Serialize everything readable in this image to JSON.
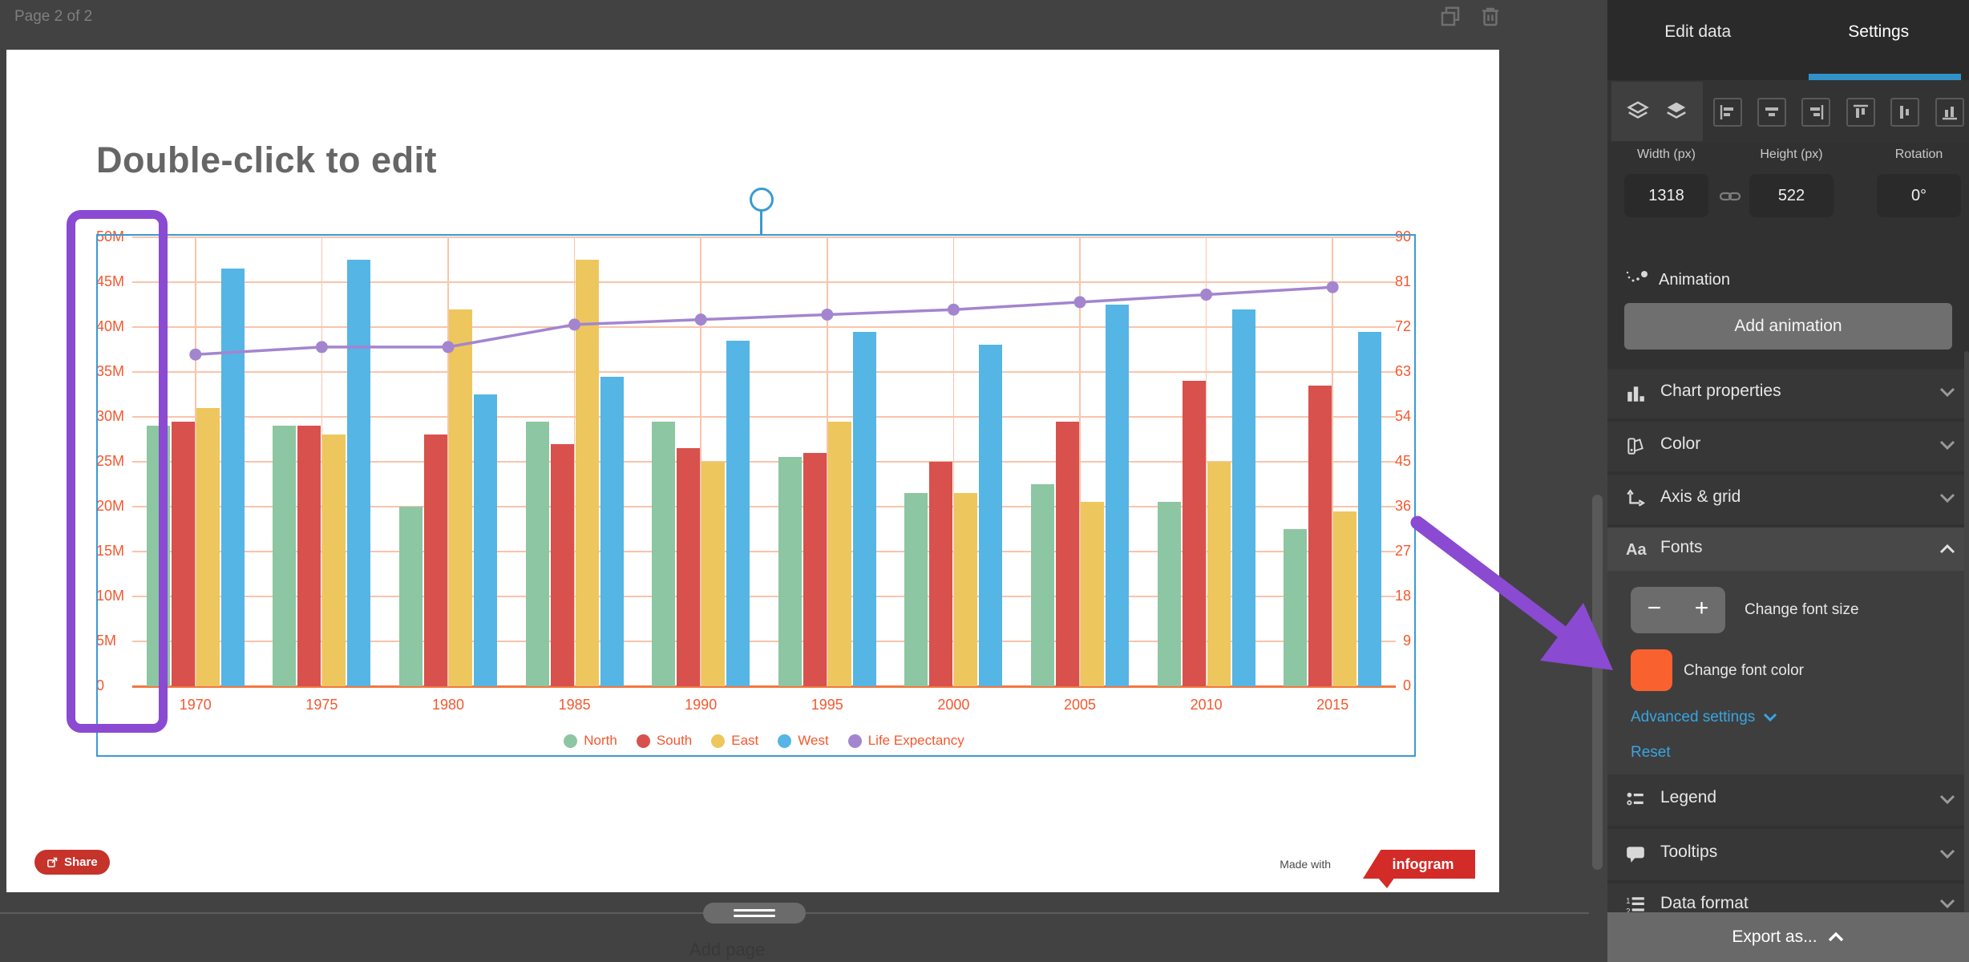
{
  "page": {
    "label": "Page 2 of 2",
    "add_page": "Add page"
  },
  "canvas": {
    "title": "Double-click to edit",
    "share_label": "Share",
    "made_with": "Made with",
    "brand": "infogram"
  },
  "chart_data": {
    "type": "bar",
    "title": "Double-click to edit",
    "categories": [
      "1970",
      "1975",
      "1980",
      "1985",
      "1990",
      "1995",
      "2000",
      "2005",
      "2010",
      "2015"
    ],
    "series": [
      {
        "name": "North",
        "color": "#8cc6a2",
        "values": [
          29,
          29,
          20,
          29.5,
          29.5,
          25.5,
          21.5,
          22.5,
          20.5,
          17.5
        ]
      },
      {
        "name": "South",
        "color": "#d8514d",
        "values": [
          29.5,
          29,
          28,
          27,
          26.5,
          26,
          25,
          29.5,
          34,
          33.5
        ]
      },
      {
        "name": "East",
        "color": "#edc75d",
        "values": [
          31,
          28,
          42,
          47.5,
          25,
          29.5,
          21.5,
          20.5,
          25,
          19.5
        ]
      },
      {
        "name": "West",
        "color": "#55b5e5",
        "values": [
          46.5,
          47.5,
          32.5,
          34.5,
          38.5,
          39.5,
          38,
          42.5,
          42,
          39.5
        ]
      }
    ],
    "line_series": {
      "name": "Life Expectancy",
      "color": "#a385cf",
      "values": [
        66.5,
        68,
        68,
        72.5,
        73.5,
        74.5,
        75.5,
        77,
        78.5,
        80
      ]
    },
    "left_axis": {
      "min": 0,
      "max": 50,
      "step": 5,
      "suffix": "M"
    },
    "right_axis": {
      "min": 0,
      "max": 90,
      "step": 9
    },
    "grid": true,
    "legend_position": "bottom",
    "axis_label_color": "#f4582e"
  },
  "panel": {
    "tabs": [
      {
        "label": "Edit data",
        "active": false
      },
      {
        "label": "Settings",
        "active": true
      }
    ],
    "dimensions": {
      "width_label": "Width (px)",
      "width_value": "1318",
      "height_label": "Height (px)",
      "height_value": "522",
      "rotation_label": "Rotation",
      "rotation_value": "0°"
    },
    "animation": {
      "label": "Animation",
      "button": "Add animation"
    },
    "sections": [
      {
        "label": "Chart properties"
      },
      {
        "label": "Color"
      },
      {
        "label": "Axis & grid"
      },
      {
        "label": "Fonts"
      },
      {
        "label": "Legend"
      },
      {
        "label": "Tooltips"
      },
      {
        "label": "Data format"
      }
    ],
    "fonts": {
      "minus": "−",
      "plus": "+",
      "change_size": "Change font size",
      "change_color": "Change font color",
      "swatch_color": "#f9622f",
      "advanced": "Advanced settings",
      "reset": "Reset"
    },
    "export": "Export as..."
  },
  "colors": {
    "accent_blue": "#3092c8",
    "link_blue": "#38a5e2",
    "annotation_purple": "#8a4ad2",
    "selection_blue": "#3b9ad2",
    "share_red": "#c5332b",
    "brand_red": "#d32b27",
    "axis_orange": "#f4582e",
    "grid_salmon": "#f9c4ab"
  }
}
